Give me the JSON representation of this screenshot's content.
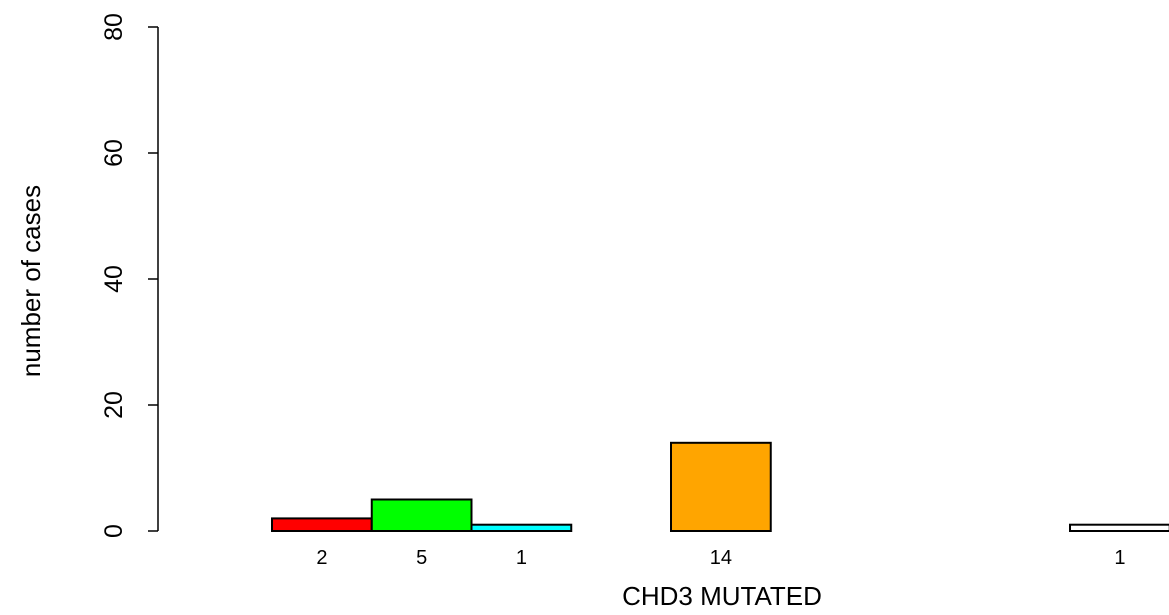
{
  "chart_data": {
    "type": "bar",
    "xlabel": "CHD3 MUTATED",
    "ylabel": "number of cases",
    "ylim": [
      0,
      80
    ],
    "yticks": [
      0,
      20,
      40,
      60,
      80
    ],
    "bins": 9,
    "bars": [
      {
        "bin": 0,
        "value": 2,
        "label": "2",
        "color": "#ff0000"
      },
      {
        "bin": 1,
        "value": 5,
        "label": "5",
        "color": "#00ff00"
      },
      {
        "bin": 2,
        "value": 1,
        "label": "1",
        "color": "#00ffff"
      },
      {
        "bin": 3,
        "value": 0,
        "label": "",
        "color": "#ffffff"
      },
      {
        "bin": 4,
        "value": 14,
        "label": "14",
        "color": "#ffa500"
      },
      {
        "bin": 5,
        "value": 0,
        "label": "",
        "color": "#ffffff"
      },
      {
        "bin": 6,
        "value": 0,
        "label": "",
        "color": "#ffffff"
      },
      {
        "bin": 7,
        "value": 0,
        "label": "",
        "color": "#ffffff"
      },
      {
        "bin": 8,
        "value": 1,
        "label": "1",
        "color": "#ffffff"
      }
    ],
    "grid": false,
    "legend": "none"
  }
}
